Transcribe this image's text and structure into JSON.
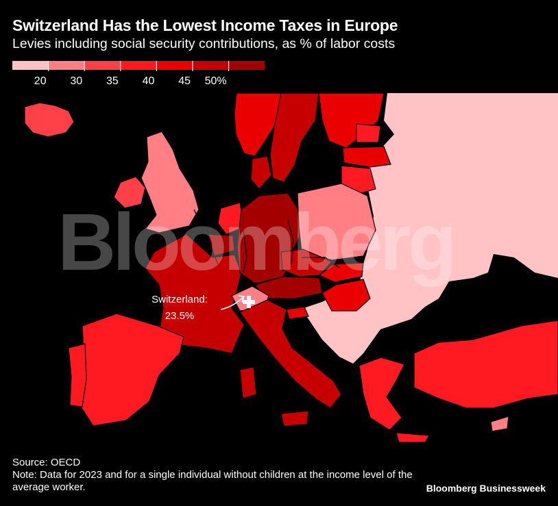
{
  "title": "Switzerland Has the Lowest Income Taxes in Europe",
  "subtitle": "Levies including social security contributions, as % of labor costs",
  "source": "Source: OECD",
  "note": "Note: Data for 2023 and for a single individual without children at the income level of the average worker.",
  "brand": "Bloomberg Businessweek",
  "watermark": "Bloomberg",
  "colors": {
    "background": "#000000",
    "no_data": "#ffc3c6",
    "text": "#ffffff",
    "border": "#000000"
  },
  "chart_data": {
    "type": "choropleth-map",
    "unit": "% of labor costs",
    "legend": {
      "ticks": [
        "20",
        "30",
        "35",
        "40",
        "45",
        "50%"
      ],
      "bins": [
        {
          "color": "#ffc3c6"
        },
        {
          "color": "#ff7f85"
        },
        {
          "color": "#ff4048"
        },
        {
          "color": "#ff1a22"
        },
        {
          "color": "#eb0000"
        },
        {
          "color": "#c60000"
        },
        {
          "color": "#a50000"
        }
      ]
    },
    "annotation": {
      "country": "Switzerland",
      "text": "Switzerland:",
      "value_text": "23.5%",
      "value": 23.5
    },
    "regions": [
      {
        "id": "iceland",
        "bin": 2
      },
      {
        "id": "ireland",
        "bin": 2
      },
      {
        "id": "uk",
        "bin": 1
      },
      {
        "id": "norway",
        "bin": 4
      },
      {
        "id": "sweden",
        "bin": 5
      },
      {
        "id": "finland",
        "bin": 4
      },
      {
        "id": "denmark",
        "bin": 5
      },
      {
        "id": "estonia",
        "bin": 3
      },
      {
        "id": "latvia",
        "bin": 4
      },
      {
        "id": "lithuania",
        "bin": 3
      },
      {
        "id": "netherlands",
        "bin": 3
      },
      {
        "id": "belgium",
        "bin": 6
      },
      {
        "id": "france",
        "bin": 5
      },
      {
        "id": "germany",
        "bin": 6
      },
      {
        "id": "poland",
        "bin": 1
      },
      {
        "id": "czechia",
        "bin": 5
      },
      {
        "id": "slovakia",
        "bin": 4
      },
      {
        "id": "austria",
        "bin": 6
      },
      {
        "id": "hungary",
        "bin": 4
      },
      {
        "id": "switzerland",
        "bin": 1
      },
      {
        "id": "italy",
        "bin": 5
      },
      {
        "id": "slovenia",
        "bin": 4
      },
      {
        "id": "spain",
        "bin": 3
      },
      {
        "id": "portugal",
        "bin": 3
      },
      {
        "id": "greece",
        "bin": 3
      },
      {
        "id": "turkey",
        "bin": 3
      },
      {
        "id": "cyprus",
        "bin": 1
      }
    ]
  }
}
